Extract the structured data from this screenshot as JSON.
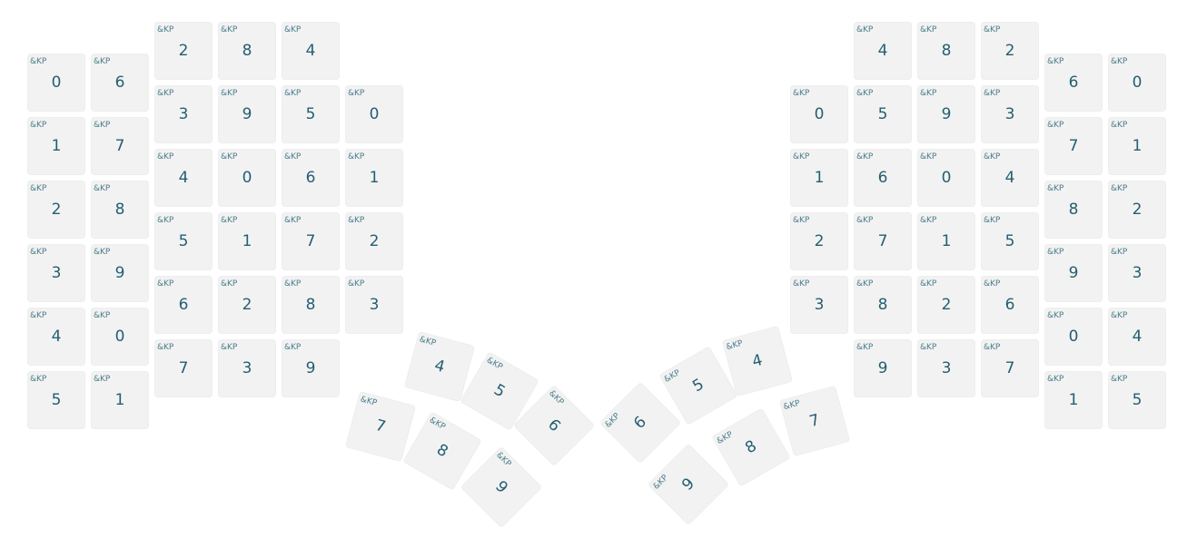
{
  "keymap": {
    "binding_label": "&KP",
    "keys": [
      {
        "group": "left",
        "value": "0"
      },
      {
        "group": "left",
        "value": "6"
      },
      {
        "group": "left",
        "value": "2"
      },
      {
        "group": "left",
        "value": "8"
      },
      {
        "group": "left",
        "value": "4"
      },
      {
        "group": "left",
        "value": "1"
      },
      {
        "group": "left",
        "value": "7"
      },
      {
        "group": "left",
        "value": "3"
      },
      {
        "group": "left",
        "value": "9"
      },
      {
        "group": "left",
        "value": "5"
      },
      {
        "group": "left",
        "value": "0"
      },
      {
        "group": "left",
        "value": "2"
      },
      {
        "group": "left",
        "value": "8"
      },
      {
        "group": "left",
        "value": "4"
      },
      {
        "group": "left",
        "value": "0"
      },
      {
        "group": "left",
        "value": "6"
      },
      {
        "group": "left",
        "value": "1"
      },
      {
        "group": "left",
        "value": "3"
      },
      {
        "group": "left",
        "value": "9"
      },
      {
        "group": "left",
        "value": "5"
      },
      {
        "group": "left",
        "value": "1"
      },
      {
        "group": "left",
        "value": "7"
      },
      {
        "group": "left",
        "value": "2"
      },
      {
        "group": "left",
        "value": "4"
      },
      {
        "group": "left",
        "value": "0"
      },
      {
        "group": "left",
        "value": "6"
      },
      {
        "group": "left",
        "value": "2"
      },
      {
        "group": "left",
        "value": "8"
      },
      {
        "group": "left",
        "value": "3"
      },
      {
        "group": "left",
        "value": "5"
      },
      {
        "group": "left",
        "value": "1"
      },
      {
        "group": "left",
        "value": "7"
      },
      {
        "group": "left",
        "value": "3"
      },
      {
        "group": "left",
        "value": "9"
      },
      {
        "group": "right",
        "value": "4"
      },
      {
        "group": "right",
        "value": "8"
      },
      {
        "group": "right",
        "value": "2"
      },
      {
        "group": "right",
        "value": "6"
      },
      {
        "group": "right",
        "value": "0"
      },
      {
        "group": "right",
        "value": "0"
      },
      {
        "group": "right",
        "value": "5"
      },
      {
        "group": "right",
        "value": "9"
      },
      {
        "group": "right",
        "value": "3"
      },
      {
        "group": "right",
        "value": "7"
      },
      {
        "group": "right",
        "value": "1"
      },
      {
        "group": "right",
        "value": "1"
      },
      {
        "group": "right",
        "value": "6"
      },
      {
        "group": "right",
        "value": "0"
      },
      {
        "group": "right",
        "value": "4"
      },
      {
        "group": "right",
        "value": "8"
      },
      {
        "group": "right",
        "value": "2"
      },
      {
        "group": "right",
        "value": "2"
      },
      {
        "group": "right",
        "value": "7"
      },
      {
        "group": "right",
        "value": "1"
      },
      {
        "group": "right",
        "value": "5"
      },
      {
        "group": "right",
        "value": "9"
      },
      {
        "group": "right",
        "value": "3"
      },
      {
        "group": "right",
        "value": "3"
      },
      {
        "group": "right",
        "value": "8"
      },
      {
        "group": "right",
        "value": "2"
      },
      {
        "group": "right",
        "value": "6"
      },
      {
        "group": "right",
        "value": "0"
      },
      {
        "group": "right",
        "value": "4"
      },
      {
        "group": "right",
        "value": "9"
      },
      {
        "group": "right",
        "value": "3"
      },
      {
        "group": "right",
        "value": "7"
      },
      {
        "group": "right",
        "value": "1"
      },
      {
        "group": "right",
        "value": "5"
      },
      {
        "group": "left-thumb",
        "value": "4"
      },
      {
        "group": "left-thumb",
        "value": "5"
      },
      {
        "group": "left-thumb",
        "value": "6"
      },
      {
        "group": "left-thumb",
        "value": "7"
      },
      {
        "group": "left-thumb",
        "value": "8"
      },
      {
        "group": "left-thumb",
        "value": "9"
      },
      {
        "group": "right-thumb",
        "value": "4"
      },
      {
        "group": "right-thumb",
        "value": "5"
      },
      {
        "group": "right-thumb",
        "value": "6"
      },
      {
        "group": "right-thumb",
        "value": "7"
      },
      {
        "group": "right-thumb",
        "value": "8"
      },
      {
        "group": "right-thumb",
        "value": "9"
      }
    ]
  }
}
